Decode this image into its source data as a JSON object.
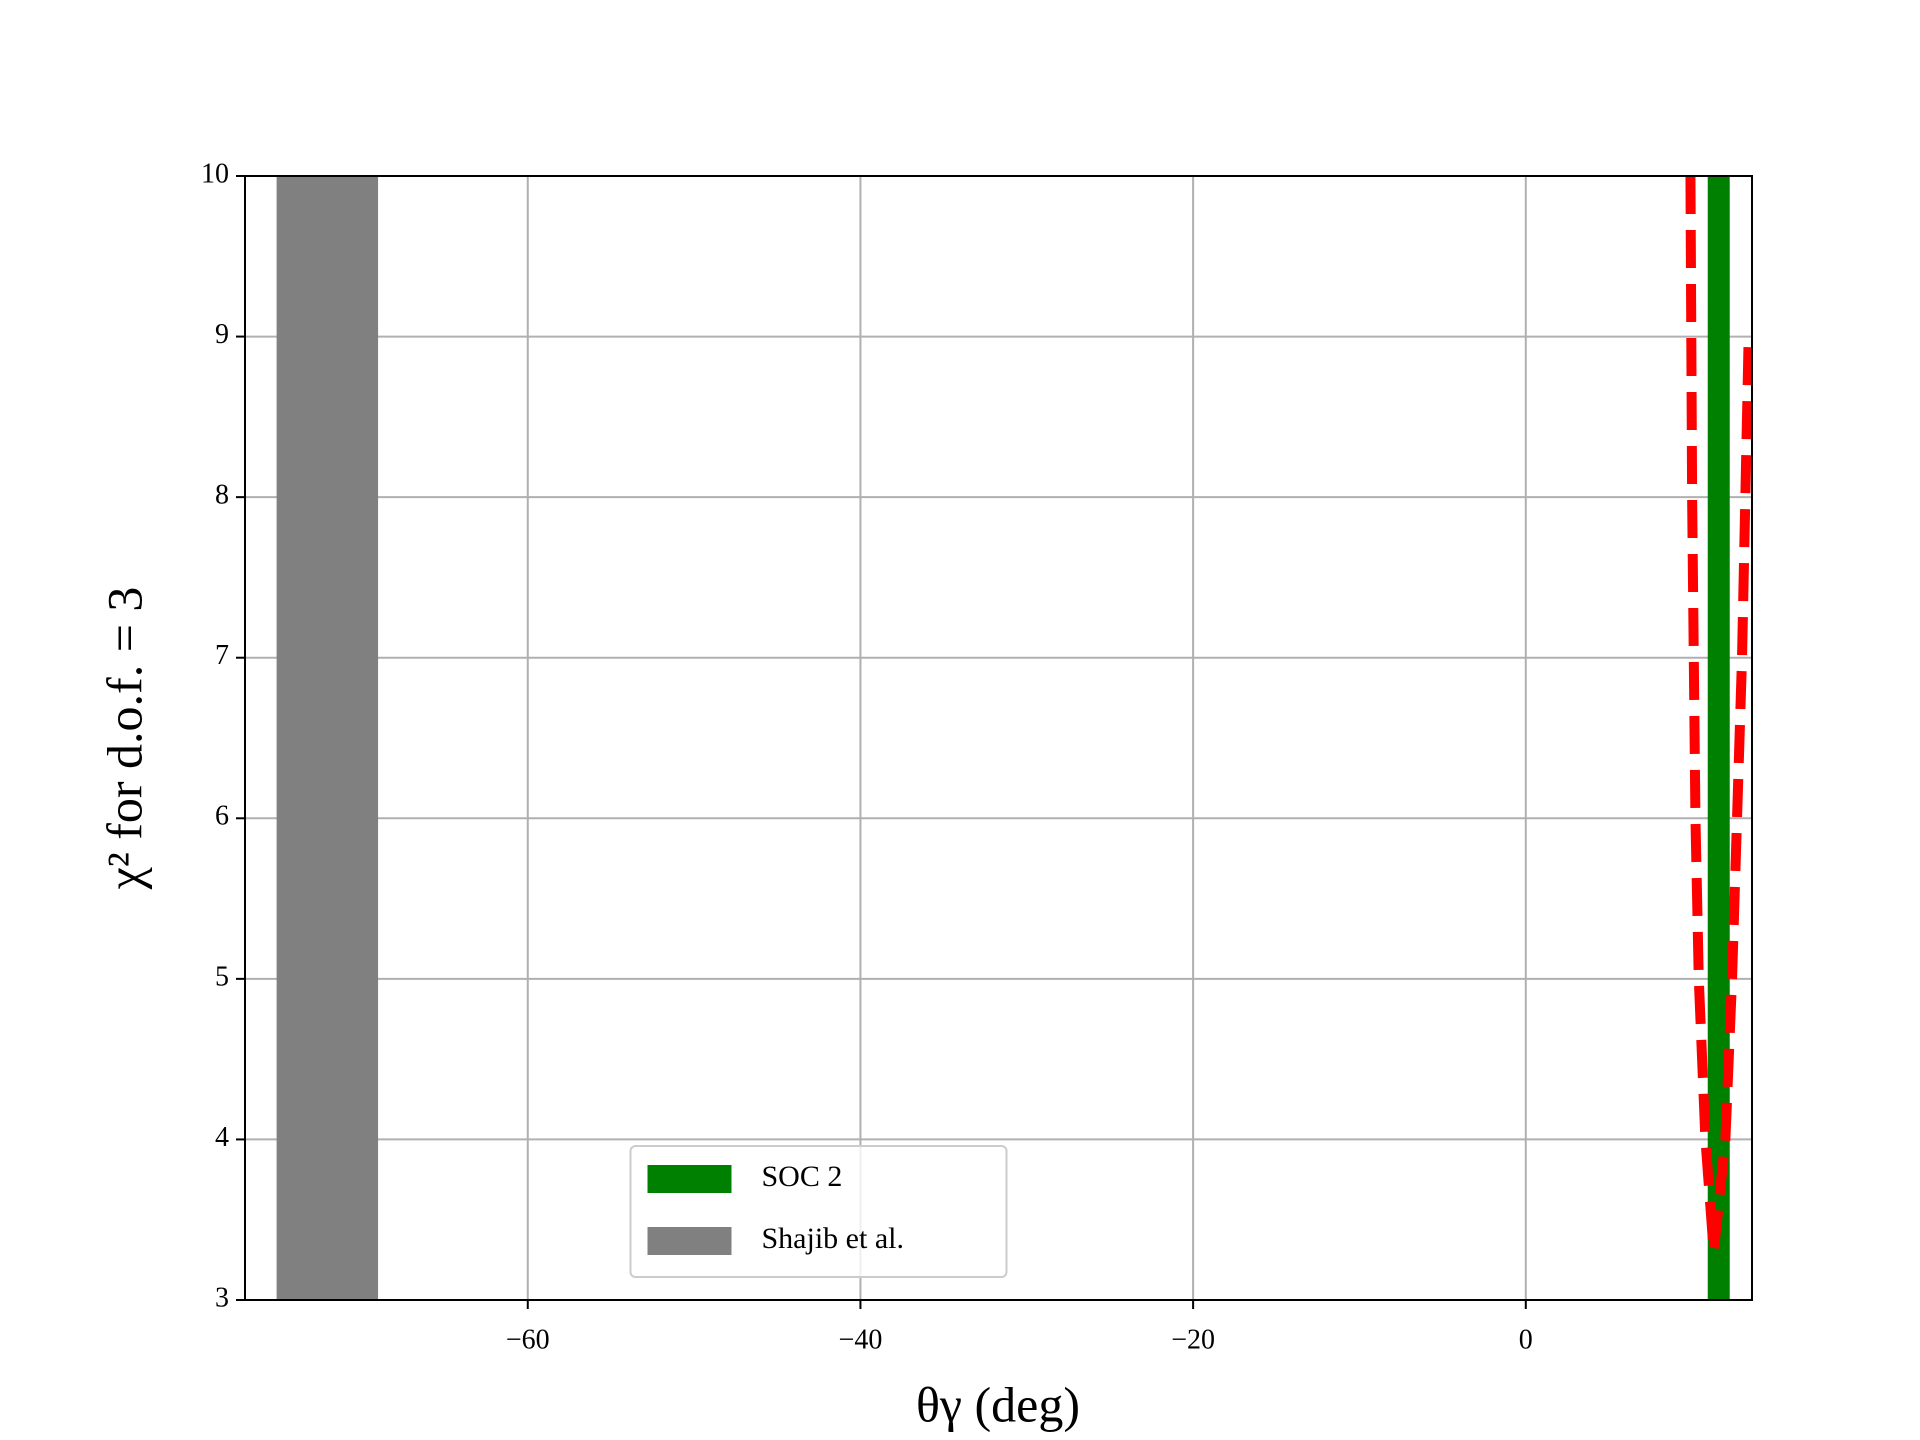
{
  "chart_data": {
    "type": "line",
    "xlabel": "θγ (deg)",
    "ylabel": "χ² for d.o.f. = 3",
    "xlim": [
      -77,
      13.6
    ],
    "ylim": [
      3,
      10
    ],
    "xticks": [
      {
        "value": -60,
        "label": "−60"
      },
      {
        "value": -40,
        "label": "−40"
      },
      {
        "value": -20,
        "label": "−20"
      },
      0
    ],
    "yticks": [
      3,
      4,
      5,
      6,
      7,
      8,
      9,
      10
    ],
    "grid": true,
    "legend": "lower center",
    "curve": {
      "color": "#ff0000",
      "x": [
        9.9,
        10.0,
        10.2,
        10.4,
        10.8,
        11.3,
        12.0,
        12.4,
        12.7,
        13.0,
        13.2,
        13.4
      ],
      "y": [
        10,
        8,
        6,
        5,
        4,
        3.3,
        4,
        5,
        6,
        7,
        8,
        9
      ]
    },
    "vline": {
      "name": "SOC 2",
      "color": "#008000",
      "x": 11.6
    },
    "span": {
      "name": "Shajib et al.",
      "color": "#808080",
      "range": [
        -75.1,
        -69.0
      ]
    }
  }
}
